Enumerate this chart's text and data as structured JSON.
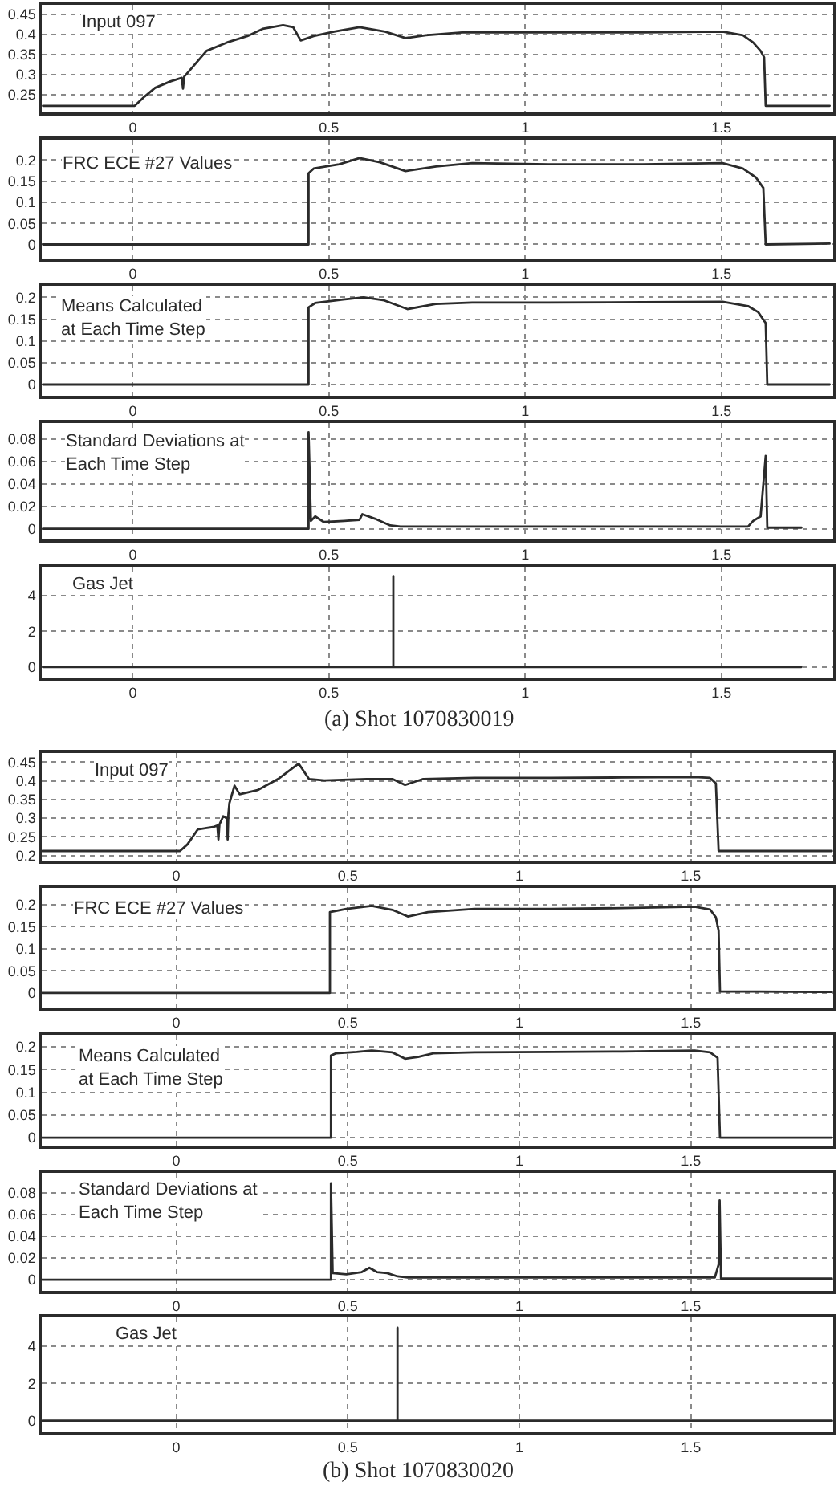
{
  "chart_data": [
    {
      "type": "line",
      "title": "Input 097",
      "x": [
        -0.229,
        0.005,
        0.03,
        0.057,
        0.096,
        0.125,
        0.128,
        0.131,
        0.135,
        0.188,
        0.24,
        0.292,
        0.331,
        0.383,
        0.409,
        0.428,
        0.461,
        0.513,
        0.578,
        0.643,
        0.695,
        0.747,
        0.839,
        1.06,
        1.3,
        1.503,
        1.555,
        1.581,
        1.6,
        1.609,
        1.613,
        1.776
      ],
      "values": [
        0.222,
        0.222,
        0.245,
        0.267,
        0.283,
        0.292,
        0.265,
        0.295,
        0.299,
        0.359,
        0.38,
        0.396,
        0.414,
        0.423,
        0.418,
        0.385,
        0.396,
        0.407,
        0.418,
        0.407,
        0.391,
        0.398,
        0.405,
        0.405,
        0.405,
        0.407,
        0.398,
        0.38,
        0.359,
        0.343,
        0.222,
        0.222
      ],
      "color": "#2b2b2b",
      "xlim": [
        -0.232,
        1.785
      ],
      "ylim": [
        0.205,
        0.474
      ],
      "xticks": [
        0,
        0.5,
        1,
        1.5
      ],
      "yticks": [
        0.25,
        0.3,
        0.35,
        0.4,
        0.45
      ],
      "grid": true
    },
    {
      "type": "line",
      "title": "FRC ECE #27 Values",
      "x": [
        -0.229,
        0.448,
        0.448,
        0.461,
        0.526,
        0.578,
        0.63,
        0.695,
        0.773,
        0.865,
        1.06,
        1.3,
        1.503,
        1.555,
        1.588,
        1.607,
        1.613,
        1.776
      ],
      "values": [
        0,
        0,
        0.169,
        0.18,
        0.19,
        0.205,
        0.195,
        0.174,
        0.185,
        0.193,
        0.19,
        0.19,
        0.193,
        0.18,
        0.159,
        0.134,
        0,
        0.002
      ],
      "color": "#2b2b2b",
      "xlim": [
        -0.232,
        1.785
      ],
      "ylim": [
        -0.033,
        0.248
      ],
      "xticks": [
        0,
        0.5,
        1,
        1.5
      ],
      "yticks": [
        0,
        0.05,
        0.1,
        0.15,
        0.2
      ],
      "grid": true
    },
    {
      "type": "line",
      "title": "Means Calculated\nat Each Time Step",
      "x": [
        -0.229,
        0.448,
        0.448,
        0.465,
        0.536,
        0.589,
        0.641,
        0.7,
        0.772,
        0.865,
        1.06,
        1.3,
        1.503,
        1.568,
        1.594,
        1.613,
        1.617,
        1.776
      ],
      "values": [
        0,
        0,
        0.177,
        0.187,
        0.195,
        0.2,
        0.193,
        0.173,
        0.185,
        0.188,
        0.188,
        0.189,
        0.19,
        0.18,
        0.166,
        0.141,
        0,
        0
      ],
      "color": "#2b2b2b",
      "xlim": [
        -0.232,
        1.785
      ],
      "ylim": [
        -0.026,
        0.227
      ],
      "xticks": [
        0,
        0.5,
        1,
        1.5
      ],
      "yticks": [
        0,
        0.05,
        0.1,
        0.15,
        0.2
      ],
      "grid": true
    },
    {
      "type": "line",
      "title": "Standard Deviations at\nEach Time Step",
      "x": [
        -0.229,
        0.448,
        0.448,
        0.454,
        0.465,
        0.487,
        0.539,
        0.578,
        0.585,
        0.617,
        0.656,
        0.682,
        1.0,
        1.3,
        1.568,
        1.581,
        1.6,
        1.613,
        1.617,
        1.704
      ],
      "values": [
        0,
        0,
        0.086,
        0.007,
        0.011,
        0.006,
        0.007,
        0.008,
        0.013,
        0.009,
        0.003,
        0.002,
        0.002,
        0.002,
        0.002,
        0.007,
        0.011,
        0.065,
        0.001,
        0.001
      ],
      "color": "#2b2b2b",
      "xlim": [
        -0.232,
        1.785
      ],
      "ylim": [
        -0.0097,
        0.0942
      ],
      "xticks": [
        0,
        0.5,
        1,
        1.5
      ],
      "yticks": [
        0,
        0.02,
        0.04,
        0.06,
        0.08
      ],
      "grid": true
    },
    {
      "type": "line",
      "title": "Gas Jet",
      "x": [
        -0.229,
        0.664,
        0.664,
        0.664,
        1.704
      ],
      "values": [
        0,
        0,
        5.1,
        0,
        0
      ],
      "color": "#2b2b2b",
      "xlim": [
        -0.232,
        1.785
      ],
      "ylim": [
        -0.6,
        5.62
      ],
      "xticks": [
        0,
        0.5,
        1,
        1.5
      ],
      "yticks": [
        0,
        2,
        4
      ],
      "grid": true,
      "annotations": [
        "(a) Shot 1070830019"
      ]
    },
    {
      "type": "line",
      "title": "Input 097",
      "x": [
        -0.39,
        0.011,
        0.033,
        0.063,
        0.107,
        0.12,
        0.123,
        0.126,
        0.137,
        0.148,
        0.15,
        0.152,
        0.155,
        0.17,
        0.185,
        0.237,
        0.297,
        0.357,
        0.387,
        0.432,
        0.555,
        0.63,
        0.667,
        0.72,
        0.869,
        1.093,
        1.3,
        1.511,
        1.556,
        1.573,
        1.581,
        1.911
      ],
      "values": [
        0.212,
        0.212,
        0.23,
        0.27,
        0.276,
        0.28,
        0.243,
        0.283,
        0.305,
        0.3,
        0.243,
        0.31,
        0.34,
        0.387,
        0.364,
        0.375,
        0.405,
        0.446,
        0.405,
        0.401,
        0.405,
        0.405,
        0.389,
        0.405,
        0.408,
        0.408,
        0.409,
        0.41,
        0.408,
        0.393,
        0.212,
        0.212
      ],
      "color": "#2b2b2b",
      "xlim": [
        -0.392,
        1.915
      ],
      "ylim": [
        0.1865,
        0.4745
      ],
      "xticks": [
        0,
        0.5,
        1,
        1.5
      ],
      "yticks": [
        0.2,
        0.25,
        0.3,
        0.35,
        0.4,
        0.45
      ],
      "grid": true
    },
    {
      "type": "line",
      "title": "FRC ECE #27 Values",
      "x": [
        -0.39,
        0.448,
        0.448,
        0.496,
        0.57,
        0.63,
        0.675,
        0.734,
        0.869,
        1.093,
        1.3,
        1.511,
        1.556,
        1.573,
        1.581,
        1.585,
        1.7,
        1.911
      ],
      "values": [
        0,
        0,
        0.183,
        0.19,
        0.197,
        0.188,
        0.173,
        0.183,
        0.19,
        0.19,
        0.192,
        0.195,
        0.189,
        0.171,
        0.141,
        0.003,
        0.003,
        0.002
      ],
      "color": "#2b2b2b",
      "xlim": [
        -0.392,
        1.915
      ],
      "ylim": [
        -0.033,
        0.238
      ],
      "xticks": [
        0,
        0.5,
        1,
        1.5
      ],
      "yticks": [
        0,
        0.05,
        0.1,
        0.15,
        0.2
      ],
      "grid": true
    },
    {
      "type": "line",
      "title": "Means Calculated\nat Each Time Step",
      "x": [
        -0.39,
        0.451,
        0.451,
        0.466,
        0.526,
        0.57,
        0.63,
        0.667,
        0.705,
        0.749,
        0.869,
        1.093,
        1.3,
        1.511,
        1.556,
        1.578,
        1.585,
        1.911
      ],
      "values": [
        0,
        0,
        0.181,
        0.186,
        0.189,
        0.192,
        0.188,
        0.174,
        0.178,
        0.186,
        0.188,
        0.189,
        0.19,
        0.192,
        0.188,
        0.176,
        0,
        0
      ],
      "color": "#2b2b2b",
      "xlim": [
        -0.392,
        1.915
      ],
      "ylim": [
        -0.018,
        0.227
      ],
      "xticks": [
        0,
        0.5,
        1,
        1.5
      ],
      "yticks": [
        0,
        0.05,
        0.1,
        0.15,
        0.2
      ],
      "grid": true
    },
    {
      "type": "line",
      "title": "Standard Deviations at\nEach Time Step",
      "x": [
        -0.39,
        0.451,
        0.451,
        0.456,
        0.496,
        0.541,
        0.563,
        0.585,
        0.615,
        0.645,
        0.675,
        1.0,
        1.3,
        1.57,
        1.581,
        1.584,
        1.588,
        1.911
      ],
      "values": [
        0,
        0,
        0.089,
        0.006,
        0.005,
        0.007,
        0.011,
        0.007,
        0.006,
        0.003,
        0.002,
        0.002,
        0.002,
        0.002,
        0.014,
        0.073,
        0.001,
        0.001
      ],
      "color": "#2b2b2b",
      "xlim": [
        -0.392,
        1.915
      ],
      "ylim": [
        -0.01,
        0.0984
      ],
      "xticks": [
        0,
        0.5,
        1,
        1.5
      ],
      "yticks": [
        0,
        0.02,
        0.04,
        0.06,
        0.08
      ],
      "grid": true
    },
    {
      "type": "line",
      "title": "Gas Jet",
      "x": [
        -0.39,
        0.645,
        0.645,
        0.645,
        1.911
      ],
      "values": [
        0,
        0,
        5,
        0,
        0
      ],
      "color": "#2b2b2b",
      "xlim": [
        -0.392,
        1.915
      ],
      "ylim": [
        -0.63,
        5.54
      ],
      "xticks": [
        0,
        0.5,
        1,
        1.5
      ],
      "yticks": [
        0,
        2,
        4
      ],
      "grid": true,
      "annotations": [
        "(b) Shot 1070830020"
      ]
    }
  ]
}
